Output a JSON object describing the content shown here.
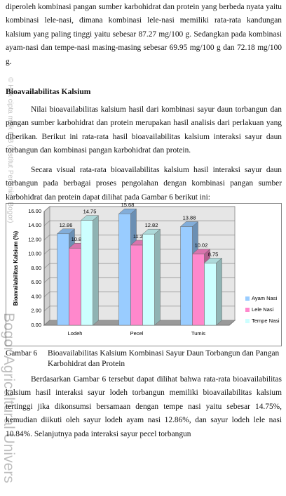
{
  "document": {
    "paragraphs": [
      "diperoleh kombinasi pangan sumber karbohidrat dan protein yang berbeda nyata yaitu kombinasi lele-nasi, dimana kombinasi lele-nasi memiliki rata-rata kandungan kalsium yang paling tinggi yaitu sebesar 87.27 mg/100 g. Sedangkan pada kombinasi ayam-nasi dan tempe-nasi masing-masing sebesar 69.95 mg/100 g dan 72.18 mg/100 g.",
      "Nilai bioavailabilitas kalsium hasil dari kombinasi sayur daun torbangun dan pangan sumber karbohidrat dan protein merupakan hasil analisis dari perlakuan yang diberikan. Berikut ini rata-rata hasil bioavailabilitas kalsium interaksi sayur daun torbangun dan kombinasi pangan karbohidrat dan protein.",
      "Secara visual rata-rata bioavailabilitas kalsium hasil interaksi sayur daun torbangun pada berbagai proses pengolahan dengan kombinasi pangan sumber karbohidrat dan protein dapat dilihat pada Gambar 6 berikut ini:",
      "Berdasarkan Gambar 6 tersebut dapat dilihat bahwa rata-rata bioavailabilitas kalsium hasil interaksi sayur lodeh torbangun memiliki bioavailabilitas kalsium tertinggi jika dikonsumsi bersamaan dengan tempe nasi yaitu sebesar 14.75%, kemudian diikuti oleh sayur lodeh ayam nasi 12.86%, dan sayur lodeh lele nasi 10.84%. Selanjutnya pada interaksi sayur pecel torbangun"
    ],
    "heading": "Bioavailabilitas Kalsium",
    "caption": {
      "label": "Gambar 6",
      "text": "Bioavailabilitas Kalsium Kombinasi Sayur Daun Torbangun dan Pangan Karbohidrat dan Protein"
    },
    "watermark": {
      "copyright": "© Hak cipta milik IPB (Institut Pertanian Bogor)",
      "university": "Bogor Agricultural Univers"
    }
  },
  "chart_data": {
    "type": "bar3d",
    "y_label": "Bioavailabilitas Kalsium (%)",
    "categories": [
      "Lodeh",
      "Pecel",
      "Tumis"
    ],
    "series": [
      {
        "name": "Ayam Nasi",
        "color": "#99ccff",
        "values": [
          12.86,
          15.68,
          13.88
        ]
      },
      {
        "name": "Lele Nasi",
        "color": "#ff88cc",
        "values": [
          10.84,
          11.26,
          10.02
        ]
      },
      {
        "name": "Tempe Nasi",
        "color": "#ccffff",
        "values": [
          14.75,
          12.82,
          8.75
        ]
      }
    ],
    "ylim": [
      0,
      16
    ],
    "yticks": [
      {
        "value": 0,
        "label": "0.00"
      },
      {
        "value": 2,
        "label": "2.00"
      },
      {
        "value": 4,
        "label": "4.00"
      },
      {
        "value": 6,
        "label": "6.00"
      },
      {
        "value": 8,
        "label": "8.00"
      },
      {
        "value": 10,
        "label": "10.00"
      },
      {
        "value": 12,
        "label": "12.00"
      },
      {
        "value": 14,
        "label": "14.00"
      },
      {
        "value": 16,
        "label": "16.00"
      }
    ],
    "grid": true,
    "legend": "right"
  }
}
